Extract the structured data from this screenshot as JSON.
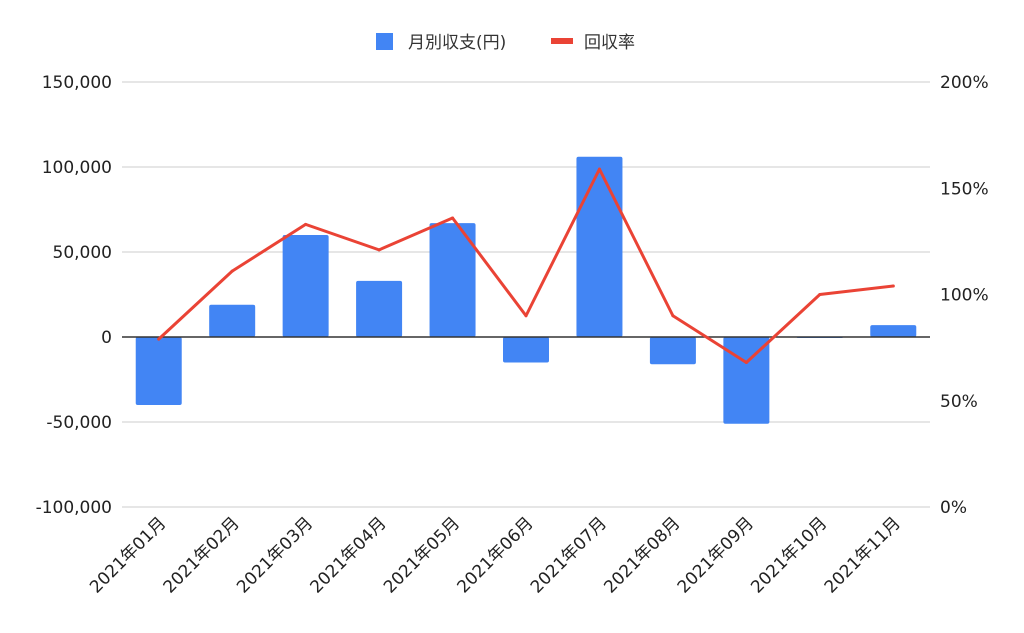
{
  "chart_data": {
    "type": "bar",
    "categories": [
      "2021年01月",
      "2021年02月",
      "2021年03月",
      "2021年04月",
      "2021年05月",
      "2021年06月",
      "2021年07月",
      "2021年08月",
      "2021年09月",
      "2021年10月",
      "2021年11月"
    ],
    "series": [
      {
        "name": "月別収支(円)",
        "type": "bar",
        "axis": "left",
        "color": "#4285f4",
        "values": [
          -40000,
          19000,
          60000,
          33000,
          67000,
          -15000,
          106000,
          -16000,
          -51000,
          0,
          7000
        ]
      },
      {
        "name": "回収率",
        "type": "line",
        "axis": "right",
        "color": "#ea4335",
        "values": [
          0.79,
          1.11,
          1.33,
          1.21,
          1.36,
          0.9,
          1.59,
          0.9,
          0.68,
          1.0,
          1.04
        ]
      }
    ],
    "y_left": {
      "ylim": [
        -100000,
        150000
      ],
      "ticks": [
        150000,
        100000,
        50000,
        0,
        -50000,
        -100000
      ],
      "tick_labels": [
        "150,000",
        "100,000",
        "50,000",
        "0",
        "-50,000",
        "-100,000"
      ]
    },
    "y_right": {
      "ylim": [
        0,
        2
      ],
      "ticks": [
        2,
        1.5,
        1,
        0.5,
        0
      ],
      "tick_labels": [
        "200%",
        "150%",
        "100%",
        "50%",
        "0%"
      ]
    },
    "legend": {
      "position": "top",
      "items": [
        "月別収支(円)",
        "回収率"
      ]
    },
    "grid": true
  }
}
